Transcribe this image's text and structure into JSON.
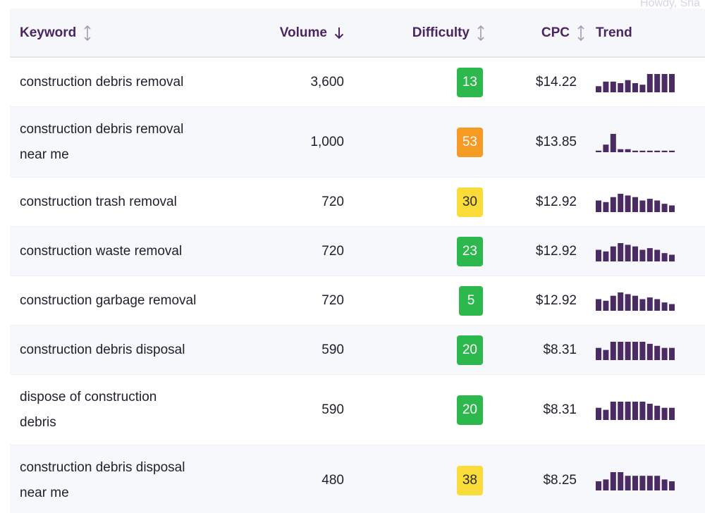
{
  "greeting": "Howdy, Sha",
  "columns": {
    "keyword": "Keyword",
    "volume": "Volume",
    "difficulty": "Difficulty",
    "cpc": "CPC",
    "trend": "Trend"
  },
  "sort": {
    "column": "volume",
    "direction": "descending"
  },
  "colors": {
    "header_text": "#4a2561",
    "trend_bar": "#4a2b63",
    "easy": "#2db84d",
    "medium": "#f9dc3a",
    "hard": "#f59a22"
  },
  "rows": [
    {
      "keyword": "construction debris removal",
      "volume": "3,600",
      "difficulty": "13",
      "level": "easy",
      "cpc": "$14.22",
      "trend": [
        4,
        7,
        7,
        6,
        8,
        6,
        5,
        12,
        12,
        12,
        12
      ]
    },
    {
      "keyword_lines": [
        "construction debris removal",
        "near me"
      ],
      "volume": "1,000",
      "difficulty": "53",
      "level": "hard",
      "cpc": "$13.85",
      "trend": [
        1,
        5,
        12,
        2,
        2,
        1,
        1,
        1,
        1,
        1,
        1
      ]
    },
    {
      "keyword": "construction trash removal",
      "volume": "720",
      "difficulty": "30",
      "level": "medium",
      "cpc": "$12.92",
      "trend": [
        7,
        6,
        9,
        11,
        10,
        9,
        7,
        8,
        7,
        5,
        4
      ]
    },
    {
      "keyword": "construction waste removal",
      "volume": "720",
      "difficulty": "23",
      "level": "easy",
      "cpc": "$12.92",
      "trend": [
        7,
        6,
        9,
        11,
        10,
        9,
        7,
        8,
        7,
        5,
        4
      ]
    },
    {
      "keyword": "construction garbage removal",
      "volume": "720",
      "difficulty": "5",
      "level": "easy",
      "cpc": "$12.92",
      "trend": [
        7,
        6,
        9,
        11,
        10,
        9,
        7,
        8,
        7,
        5,
        4
      ]
    },
    {
      "keyword": "construction debris disposal",
      "volume": "590",
      "difficulty": "20",
      "level": "easy",
      "cpc": "$8.31",
      "trend": [
        6,
        5,
        9,
        9,
        9,
        9,
        9,
        8,
        7,
        6,
        6
      ]
    },
    {
      "keyword_lines": [
        "dispose of construction",
        "debris"
      ],
      "volume": "590",
      "difficulty": "20",
      "level": "easy",
      "cpc": "$8.31",
      "trend": [
        6,
        5,
        9,
        9,
        9,
        9,
        9,
        8,
        7,
        6,
        6
      ]
    },
    {
      "keyword_lines": [
        "construction debris disposal",
        "near me"
      ],
      "volume": "480",
      "difficulty": "38",
      "level": "medium",
      "cpc": "$8.25",
      "trend": [
        5,
        6,
        10,
        10,
        8,
        8,
        8,
        8,
        8,
        6,
        5
      ]
    }
  ]
}
